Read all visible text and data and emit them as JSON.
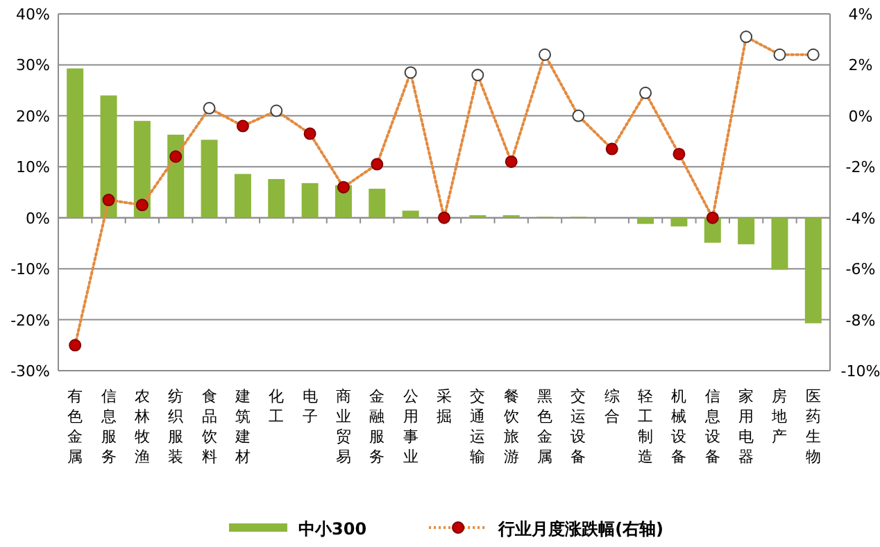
{
  "chart_data": {
    "type": "bar",
    "categories": [
      "有色金属",
      "信息服务",
      "农林牧渔",
      "纺织服装",
      "食品饮料",
      "建筑建材",
      "化工",
      "电子",
      "商业贸易",
      "金融服务",
      "公用事业",
      "采掘",
      "交通运输",
      "餐饮旅游",
      "黑色金属",
      "交运设备",
      "综合",
      "轻工制造",
      "机械设备",
      "信息设备",
      "家用电器",
      "房地产",
      "医药生物"
    ],
    "series": [
      {
        "name": "中小300",
        "color": "#8db63c",
        "values": [
          29.3,
          24.0,
          19.0,
          16.3,
          15.3,
          8.6,
          7.6,
          6.8,
          6.4,
          5.7,
          1.4,
          null,
          0.5,
          0.5,
          0.2,
          0.2,
          0,
          -1.2,
          -1.7,
          -4.9,
          -5.2,
          -10.2,
          -20.7
        ]
      },
      {
        "name": "行业月度涨跌幅(右轴)",
        "type": "line",
        "axis": "y2",
        "color": "#e38a3e",
        "line_style": "dotted",
        "marker": "circle",
        "colors": [
          "#c00000",
          "#c00000",
          "#c00000",
          "#c00000",
          "#ffffff",
          "#c00000",
          "#ffffff",
          "#c00000",
          "#c00000",
          "#c00000",
          "#ffffff",
          "#c00000",
          "#ffffff",
          "#c00000",
          "#ffffff",
          "#ffffff",
          "#c00000",
          "#ffffff",
          "#c00000",
          "#c00000",
          "#ffffff",
          "#ffffff",
          "#ffffff"
        ],
        "values": [
          -9.0,
          -3.3,
          -3.5,
          -1.6,
          0.3,
          -0.4,
          0.2,
          -0.7,
          -2.8,
          -1.9,
          1.7,
          -4.0,
          1.6,
          -1.8,
          2.4,
          0,
          -1.3,
          0.9,
          -1.5,
          -4.0,
          3.1,
          2.4,
          2.4
        ]
      }
    ],
    "ylim": [
      -30,
      40
    ],
    "yticks": [
      {
        "value": -30,
        "label": "-30%"
      },
      {
        "value": -20,
        "label": "-20%"
      },
      {
        "value": -10,
        "label": "-10%"
      },
      {
        "value": 0,
        "label": "0%"
      },
      {
        "value": 10,
        "label": "10%"
      },
      {
        "value": 20,
        "label": "20%"
      },
      {
        "value": 30,
        "label": "30%"
      },
      {
        "value": 40,
        "label": "40%"
      }
    ],
    "y2lim": [
      -10,
      4
    ],
    "y2ticks": [
      {
        "value": -10,
        "label": "-10%"
      },
      {
        "value": -8,
        "label": "-8%"
      },
      {
        "value": -6,
        "label": "-6%"
      },
      {
        "value": -4,
        "label": "-4%"
      },
      {
        "value": -2,
        "label": "-2%"
      },
      {
        "value": 0,
        "label": "0%"
      },
      {
        "value": 2,
        "label": "2%"
      },
      {
        "value": 4,
        "label": "4%"
      }
    ],
    "grid": "y",
    "legend": "bottom"
  }
}
